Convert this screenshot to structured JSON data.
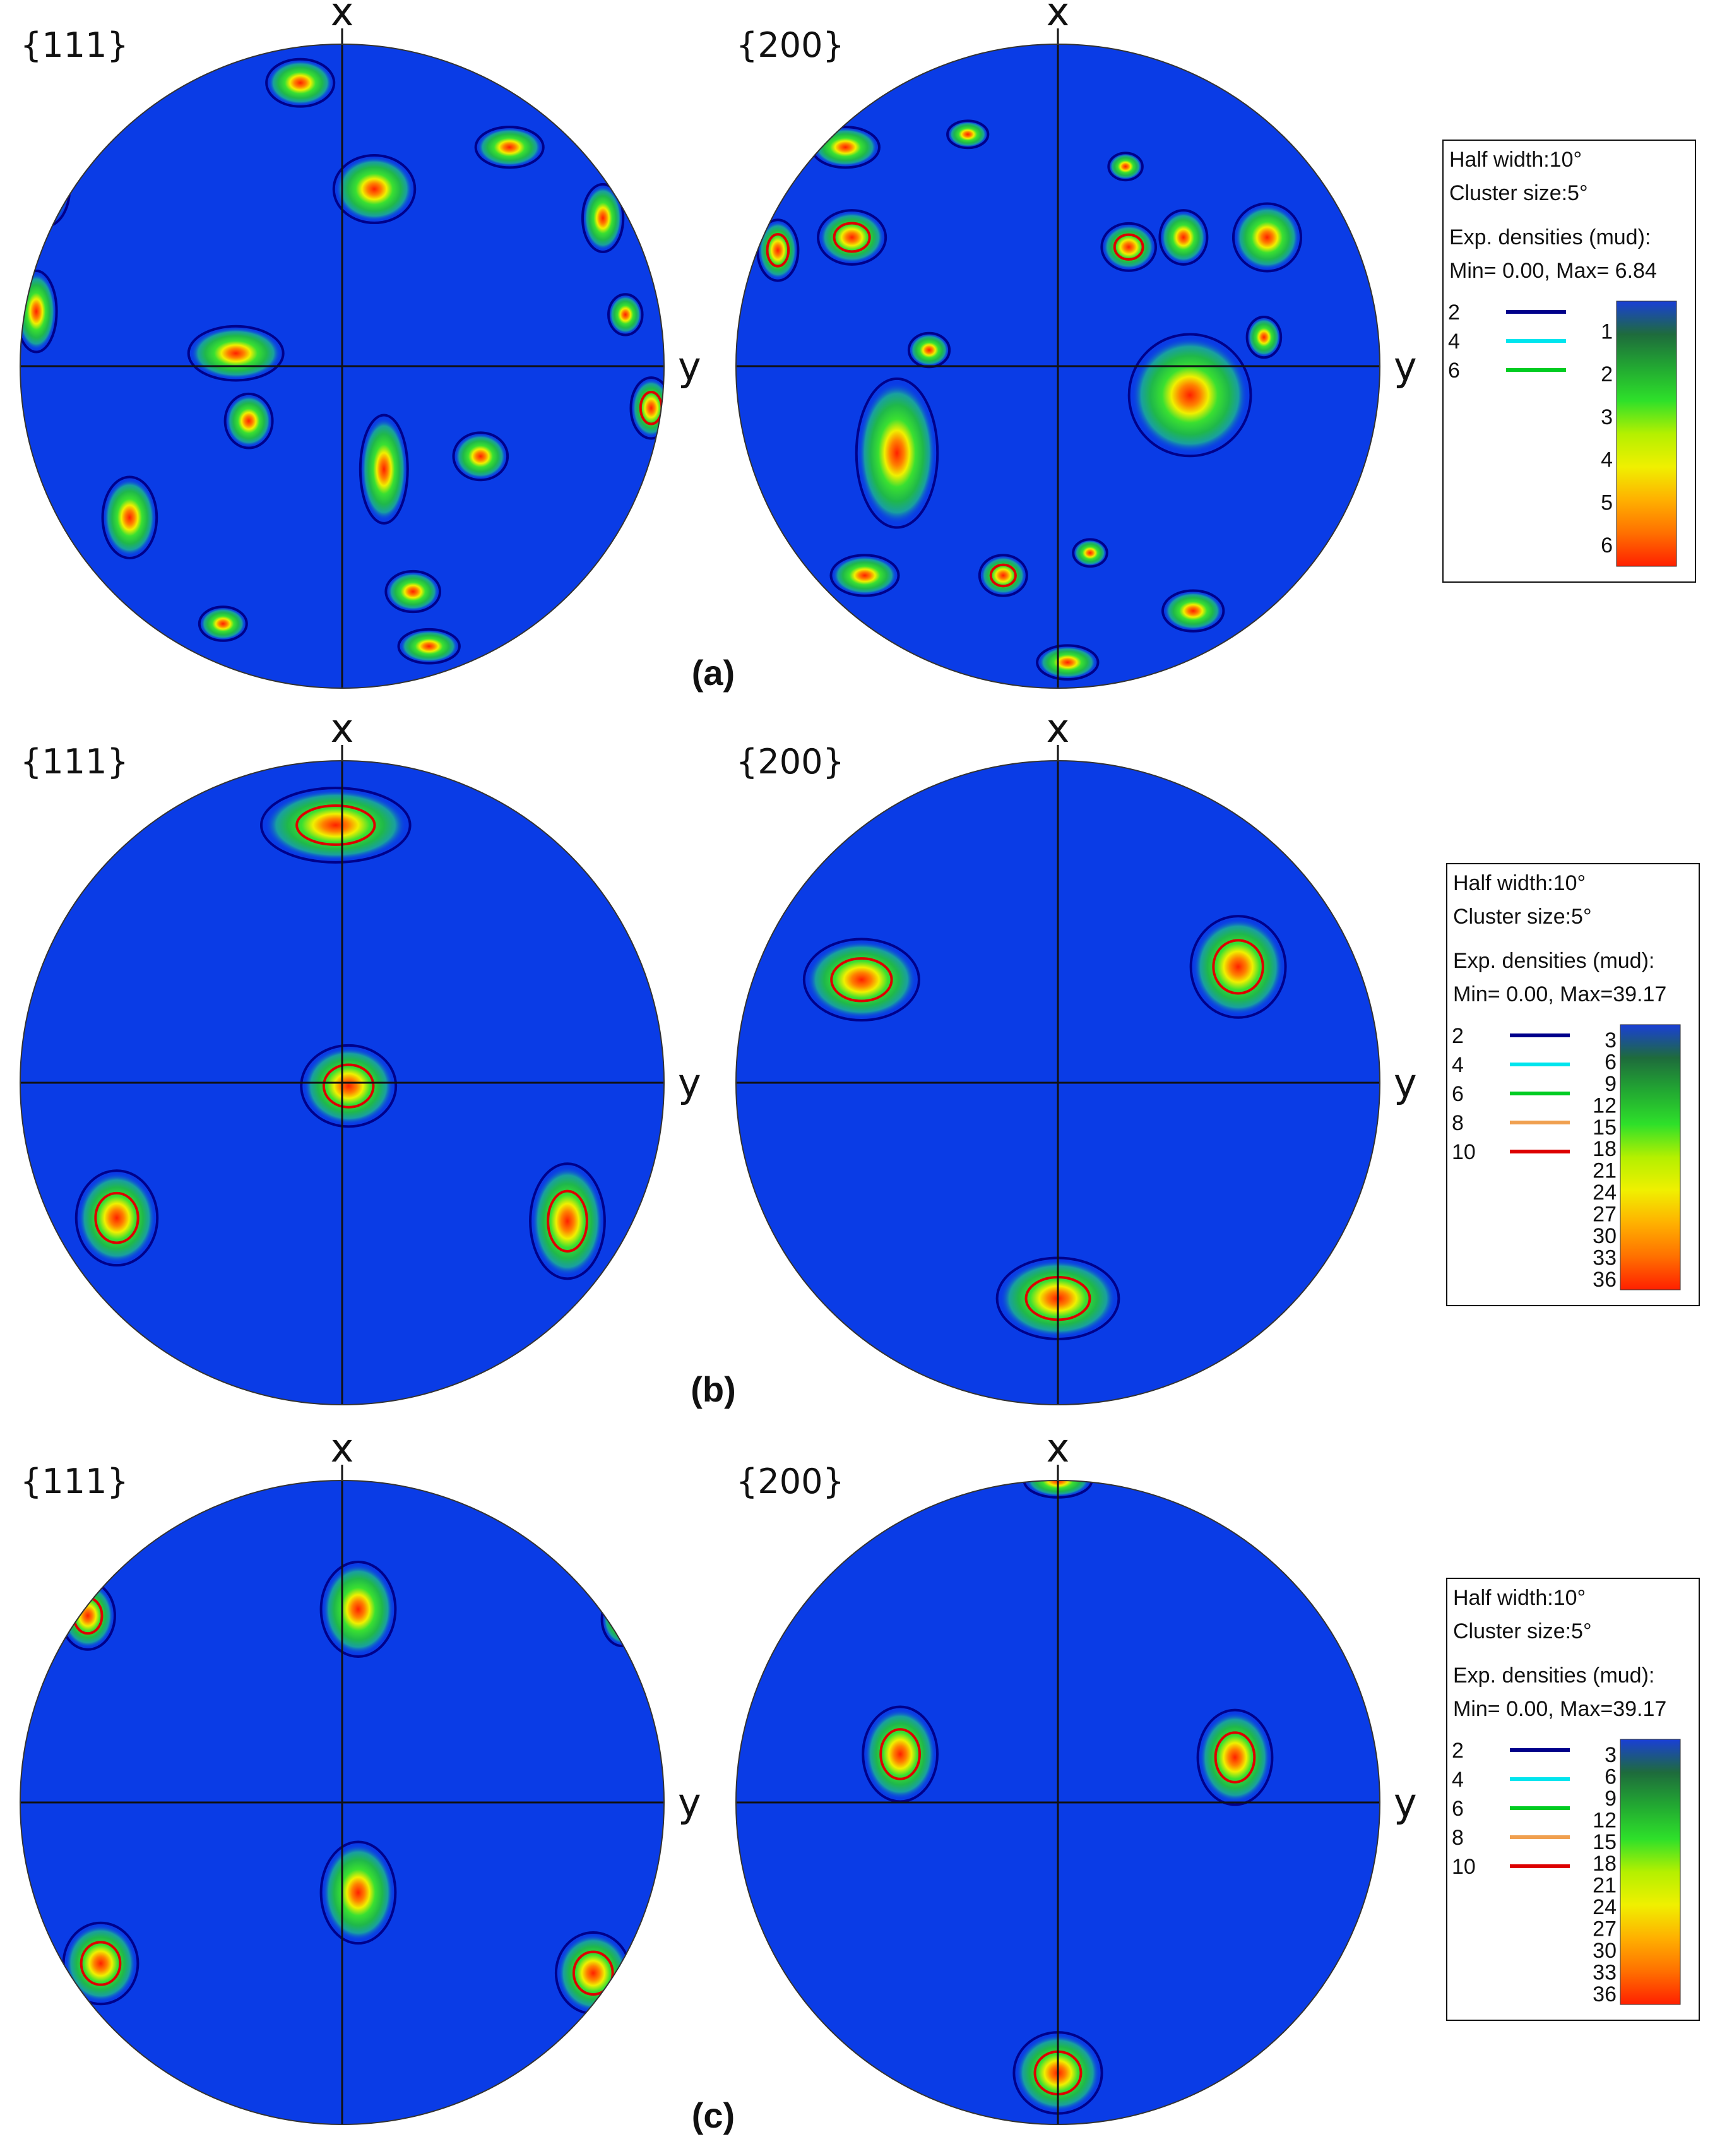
{
  "panels": [
    {
      "label": "(a)",
      "figures": [
        {
          "title": "{111}",
          "x_axis": "x",
          "y_axis": "y",
          "poles": [
            {
              "u": -0.13,
              "v": -0.88,
              "a": 0.1,
              "b": 0.07,
              "level": 0.45
            },
            {
              "u": -0.92,
              "v": -0.55,
              "a": 0.07,
              "b": 0.11,
              "level": 0.4
            },
            {
              "u": 0.1,
              "v": -0.55,
              "a": 0.12,
              "b": 0.1,
              "level": 0.55
            },
            {
              "u": 0.52,
              "v": -0.68,
              "a": 0.1,
              "b": 0.06,
              "level": 0.3
            },
            {
              "u": 0.81,
              "v": -0.46,
              "a": 0.06,
              "b": 0.1,
              "level": 0.5
            },
            {
              "u": -0.95,
              "v": -0.17,
              "a": 0.06,
              "b": 0.12,
              "level": 0.35
            },
            {
              "u": -0.33,
              "v": -0.04,
              "a": 0.14,
              "b": 0.08,
              "level": 0.55
            },
            {
              "u": 0.88,
              "v": -0.16,
              "a": 0.05,
              "b": 0.06,
              "level": 0.3
            },
            {
              "u": -0.29,
              "v": 0.17,
              "a": 0.07,
              "b": 0.08,
              "level": 0.5
            },
            {
              "u": 0.13,
              "v": 0.32,
              "a": 0.07,
              "b": 0.16,
              "level": 0.4
            },
            {
              "u": 0.43,
              "v": 0.28,
              "a": 0.08,
              "b": 0.07,
              "level": 0.55
            },
            {
              "u": 0.96,
              "v": 0.13,
              "a": 0.06,
              "b": 0.09,
              "level": 0.65
            },
            {
              "u": -0.66,
              "v": 0.47,
              "a": 0.08,
              "b": 0.12,
              "level": 0.4
            },
            {
              "u": -0.37,
              "v": 0.8,
              "a": 0.07,
              "b": 0.05,
              "level": 0.35
            },
            {
              "u": 0.22,
              "v": 0.7,
              "a": 0.08,
              "b": 0.06,
              "level": 0.45
            },
            {
              "u": 0.27,
              "v": 0.87,
              "a": 0.09,
              "b": 0.05,
              "level": 0.4
            }
          ]
        },
        {
          "title": "{200}",
          "x_axis": "x",
          "y_axis": "y",
          "poles": [
            {
              "u": -0.66,
              "v": -0.68,
              "a": 0.1,
              "b": 0.06,
              "level": 0.45
            },
            {
              "u": -0.28,
              "v": -0.72,
              "a": 0.06,
              "b": 0.04,
              "level": 0.35
            },
            {
              "u": -0.64,
              "v": -0.4,
              "a": 0.1,
              "b": 0.08,
              "level": 0.7
            },
            {
              "u": -0.87,
              "v": -0.36,
              "a": 0.06,
              "b": 0.09,
              "level": 0.75
            },
            {
              "u": -0.4,
              "v": -0.05,
              "a": 0.06,
              "b": 0.05,
              "level": 0.5
            },
            {
              "u": 0.21,
              "v": -0.62,
              "a": 0.05,
              "b": 0.04,
              "level": 0.35
            },
            {
              "u": 0.22,
              "v": -0.37,
              "a": 0.08,
              "b": 0.07,
              "level": 0.9
            },
            {
              "u": 0.39,
              "v": -0.4,
              "a": 0.07,
              "b": 0.08,
              "level": 0.55
            },
            {
              "u": 0.65,
              "v": -0.4,
              "a": 0.1,
              "b": 0.1,
              "level": 0.5
            },
            {
              "u": 0.64,
              "v": -0.09,
              "a": 0.05,
              "b": 0.06,
              "level": 0.5
            },
            {
              "u": 0.41,
              "v": 0.09,
              "a": 0.18,
              "b": 0.18,
              "level": 0.55
            },
            {
              "u": -0.5,
              "v": 0.27,
              "a": 0.12,
              "b": 0.22,
              "level": 0.45
            },
            {
              "u": -0.17,
              "v": 0.65,
              "a": 0.07,
              "b": 0.06,
              "level": 0.95
            },
            {
              "u": -0.6,
              "v": 0.65,
              "a": 0.1,
              "b": 0.06,
              "level": 0.35
            },
            {
              "u": 0.1,
              "v": 0.58,
              "a": 0.05,
              "b": 0.04,
              "level": 0.3
            },
            {
              "u": 0.42,
              "v": 0.76,
              "a": 0.09,
              "b": 0.06,
              "level": 0.5
            },
            {
              "u": 0.03,
              "v": 0.92,
              "a": 0.09,
              "b": 0.05,
              "level": 0.5
            }
          ]
        }
      ],
      "legend": {
        "lines": [
          "Half width:10°",
          "Cluster size:5°",
          "Exp. densities (mud):",
          "Min= 0.00, Max= 6.84"
        ],
        "contours": [
          {
            "value": "2",
            "color": "#00008b"
          },
          {
            "value": "4",
            "color": "#00e5ee"
          },
          {
            "value": "6",
            "color": "#00cc22"
          }
        ],
        "scale_ticks": [
          "1",
          "2",
          "3",
          "4",
          "5",
          "6"
        ]
      }
    },
    {
      "label": "(b)",
      "figures": [
        {
          "title": "{111}",
          "x_axis": "x",
          "y_axis": "y",
          "poles": [
            {
              "u": -0.02,
              "v": -0.8,
              "a": 0.22,
              "b": 0.11,
              "level": 0.75
            },
            {
              "u": 0.02,
              "v": 0.01,
              "a": 0.14,
              "b": 0.12,
              "level": 0.8
            },
            {
              "u": -0.7,
              "v": 0.42,
              "a": 0.12,
              "b": 0.14,
              "level": 0.65
            },
            {
              "u": 0.7,
              "v": 0.43,
              "a": 0.11,
              "b": 0.17,
              "level": 0.7
            }
          ]
        },
        {
          "title": "{200}",
          "x_axis": "x",
          "y_axis": "y",
          "poles": [
            {
              "u": -0.61,
              "v": -0.32,
              "a": 0.17,
              "b": 0.12,
              "level": 0.8
            },
            {
              "u": 0.56,
              "v": -0.36,
              "a": 0.14,
              "b": 0.15,
              "level": 0.75
            },
            {
              "u": 0.0,
              "v": 0.67,
              "a": 0.18,
              "b": 0.12,
              "level": 1.0
            }
          ]
        }
      ],
      "legend": {
        "lines": [
          "Half width:10°",
          "Cluster size:5°",
          "Exp. densities (mud):",
          "Min= 0.00, Max=39.17"
        ],
        "contours": [
          {
            "value": "2",
            "color": "#00008b"
          },
          {
            "value": "4",
            "color": "#00e5ee"
          },
          {
            "value": "6",
            "color": "#00cc22"
          },
          {
            "value": "8",
            "color": "#f0a050"
          },
          {
            "value": "10",
            "color": "#dd0000"
          }
        ],
        "scale_ticks": [
          "3",
          "6",
          "9",
          "12",
          "15",
          "18",
          "21",
          "24",
          "27",
          "30",
          "33",
          "36"
        ]
      }
    },
    {
      "label": "(c)",
      "figures": [
        {
          "title": "{111}",
          "x_axis": "x",
          "y_axis": "y",
          "poles": [
            {
              "u": 0.05,
              "v": -0.6,
              "a": 0.11,
              "b": 0.14,
              "level": 0.6
            },
            {
              "u": 0.05,
              "v": 0.28,
              "a": 0.11,
              "b": 0.15,
              "level": 0.6
            },
            {
              "u": -0.79,
              "v": -0.58,
              "a": 0.08,
              "b": 0.1,
              "level": 0.75
            },
            {
              "u": 0.87,
              "v": -0.57,
              "a": 0.06,
              "b": 0.08,
              "level": 0.55
            },
            {
              "u": -0.75,
              "v": 0.5,
              "a": 0.11,
              "b": 0.12,
              "level": 0.8
            },
            {
              "u": 0.78,
              "v": 0.53,
              "a": 0.11,
              "b": 0.12,
              "level": 0.75
            }
          ]
        },
        {
          "title": "{200}",
          "x_axis": "x",
          "y_axis": "y",
          "poles": [
            {
              "u": -0.49,
              "v": -0.15,
              "a": 0.11,
              "b": 0.14,
              "level": 0.85
            },
            {
              "u": 0.55,
              "v": -0.14,
              "a": 0.11,
              "b": 0.14,
              "level": 0.9
            },
            {
              "u": 0.0,
              "v": 0.84,
              "a": 0.13,
              "b": 0.12,
              "level": 0.95
            },
            {
              "u": 0.0,
              "v": -1.0,
              "a": 0.1,
              "b": 0.05,
              "level": 0.45
            }
          ]
        }
      ],
      "legend": {
        "lines": [
          "Half width:10°",
          "Cluster size:5°",
          "Exp. densities (mud):",
          "Min= 0.00, Max=39.17"
        ],
        "contours": [
          {
            "value": "2",
            "color": "#00008b"
          },
          {
            "value": "4",
            "color": "#00e5ee"
          },
          {
            "value": "6",
            "color": "#00cc22"
          },
          {
            "value": "8",
            "color": "#f0a050"
          },
          {
            "value": "10",
            "color": "#dd0000"
          }
        ],
        "scale_ticks": [
          "3",
          "6",
          "9",
          "12",
          "15",
          "18",
          "21",
          "24",
          "27",
          "30",
          "33",
          "36"
        ]
      }
    }
  ],
  "colors": {
    "background_blue": "#0a3ce6",
    "scale_gradient": [
      "#1a3fd6",
      "#1e6b3c",
      "#22a832",
      "#2ee02a",
      "#b4f000",
      "#f0f000",
      "#ffb000",
      "#ff7000",
      "#ff2000"
    ]
  }
}
